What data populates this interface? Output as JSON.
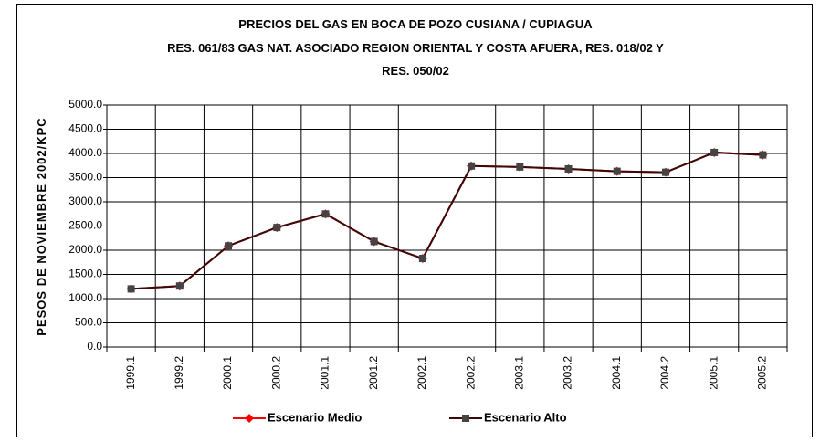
{
  "chart_data": {
    "type": "line",
    "title": [
      "PRECIOS DEL GAS EN BOCA DE POZO CUSIANA / CUPIAGUA",
      "RES. 061/83 GAS NAT. ASOCIADO REGION ORIENTAL Y COSTA AFUERA, RES. 018/02 Y",
      "RES. 050/02"
    ],
    "y_label": "PESOS DE NOVIEMBRE 2002/KPC",
    "categories": [
      "1999.1",
      "1999.2",
      "2000.1",
      "2000.2",
      "2001.1",
      "2001.2",
      "2002.1",
      "2002.2",
      "2003.1",
      "2003.2",
      "2004.1",
      "2004.2",
      "2005.1",
      "2005.2"
    ],
    "series": [
      {
        "name": "Escenario Medio",
        "color": "#ff0000",
        "marker": "diamond",
        "values": [
          1200,
          1260,
          2090,
          2470,
          2750,
          2180,
          1830,
          3740,
          3720,
          3680,
          3630,
          3610,
          4020,
          3970
        ]
      },
      {
        "name": "Escenario Alto",
        "color": "#3a0a0a",
        "marker_color": "#444444",
        "marker": "square",
        "values": [
          1200,
          1260,
          2090,
          2470,
          2750,
          2180,
          1830,
          3740,
          3720,
          3680,
          3630,
          3610,
          4020,
          3970
        ]
      }
    ],
    "ylim": [
      0,
      5000
    ],
    "yticks": [
      {
        "value": 0,
        "label": "0.0"
      },
      {
        "value": 500,
        "label": "500.0"
      },
      {
        "value": 1000,
        "label": "1000.0"
      },
      {
        "value": 1500,
        "label": "1500.0"
      },
      {
        "value": 2000,
        "label": "2000.0"
      },
      {
        "value": 2500,
        "label": "2500.0"
      },
      {
        "value": 3000,
        "label": "3000.0"
      },
      {
        "value": 3500,
        "label": "3500.0"
      },
      {
        "value": 4000,
        "label": "4000.0"
      },
      {
        "value": 4500,
        "label": "4500.0"
      },
      {
        "value": 5000,
        "label": "5000.0"
      }
    ],
    "grid": true,
    "legend": "bottom"
  }
}
